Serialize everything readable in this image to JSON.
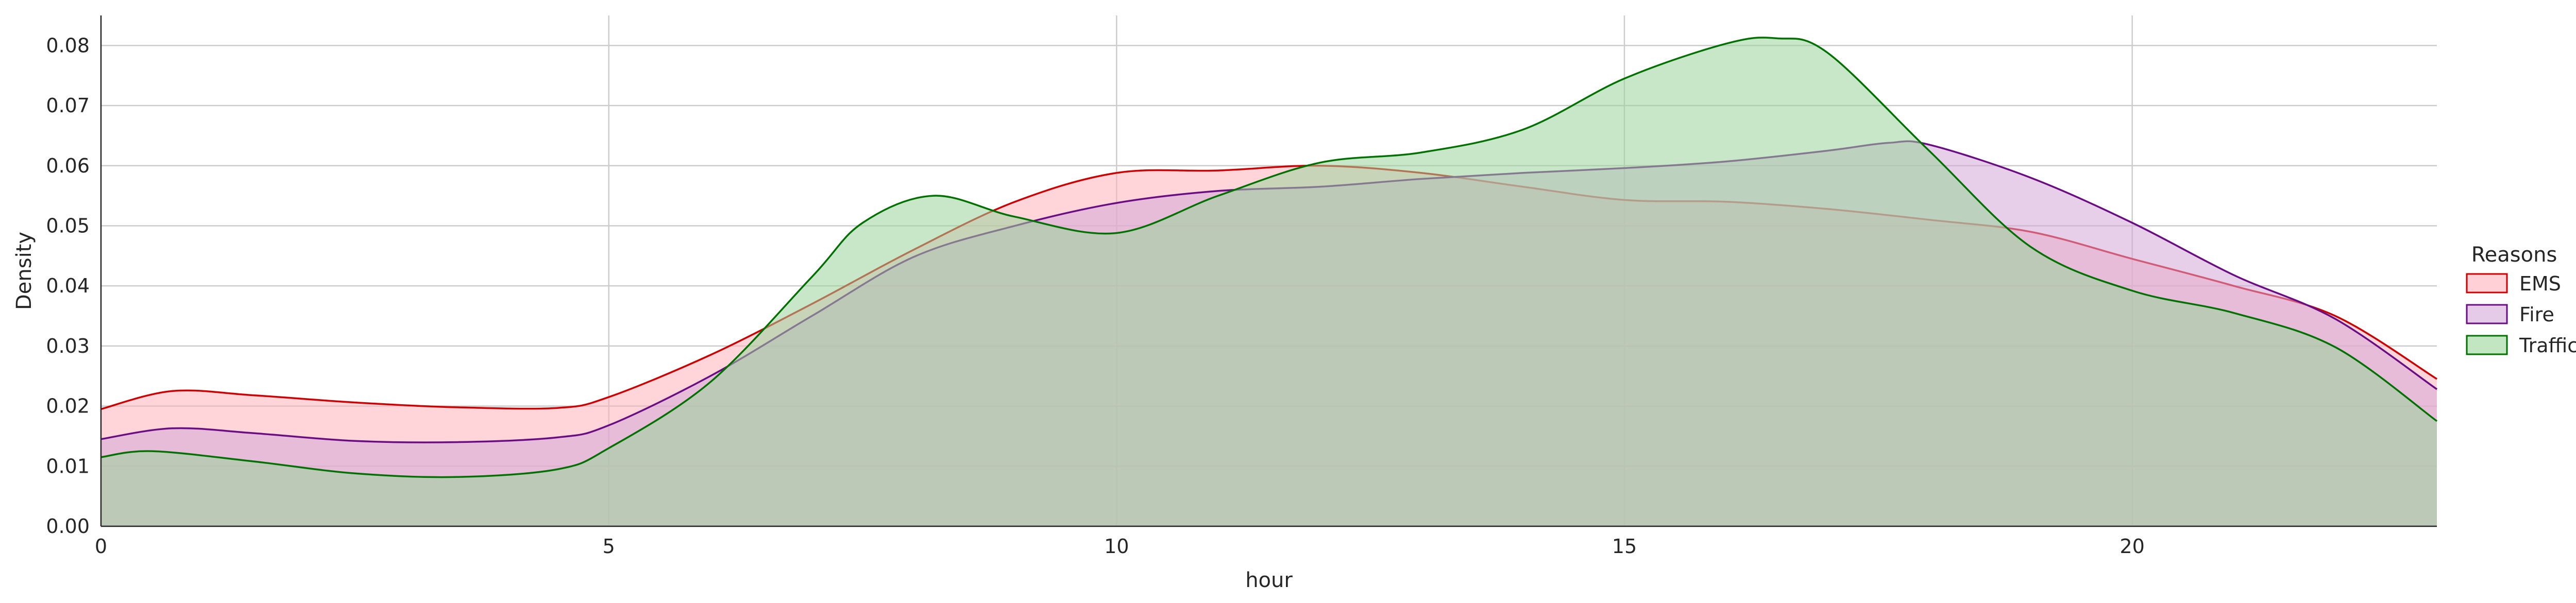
{
  "chart_data": {
    "type": "area",
    "subtype": "kde-density",
    "title": "",
    "xlabel": "hour",
    "ylabel": "Density",
    "xlim": [
      0,
      23
    ],
    "ylim": [
      0,
      0.085
    ],
    "xticks": [
      0,
      5,
      10,
      15,
      20
    ],
    "yticks": [
      0.0,
      0.01,
      0.02,
      0.03,
      0.04,
      0.05,
      0.06,
      0.07,
      0.08
    ],
    "grid": true,
    "legend": {
      "title": "Reasons",
      "placement": "right"
    },
    "series": [
      {
        "name": "EMS",
        "color": "#cc0000",
        "fill": "#ffb3ba",
        "x": [
          0,
          0.7,
          1.5,
          2.5,
          3.5,
          4.5,
          5,
          6,
          7,
          8,
          9,
          10,
          11,
          12,
          13,
          14,
          15,
          16,
          17,
          18,
          19,
          20,
          21,
          22,
          23
        ],
        "y": [
          0.0195,
          0.0225,
          0.0218,
          0.0206,
          0.0198,
          0.0197,
          0.0215,
          0.0285,
          0.037,
          0.046,
          0.054,
          0.0588,
          0.0592,
          0.06,
          0.0588,
          0.0565,
          0.0543,
          0.054,
          0.0528,
          0.051,
          0.049,
          0.0445,
          0.04,
          0.035,
          0.0245
        ]
      },
      {
        "name": "Fire",
        "color": "#6a0d83",
        "fill": "#d4a8d8",
        "x": [
          0,
          0.7,
          1.5,
          2.5,
          3.5,
          4.5,
          5,
          6,
          7,
          8,
          9,
          10,
          11,
          12,
          13,
          14,
          15,
          16,
          17,
          17.6,
          18,
          19,
          20,
          21,
          22,
          23
        ],
        "y": [
          0.0145,
          0.0163,
          0.0155,
          0.0142,
          0.014,
          0.0148,
          0.0168,
          0.025,
          0.035,
          0.0448,
          0.05,
          0.0538,
          0.0558,
          0.0565,
          0.0578,
          0.0588,
          0.0596,
          0.0607,
          0.0625,
          0.0638,
          0.0635,
          0.058,
          0.0505,
          0.0418,
          0.0345,
          0.0228
        ]
      },
      {
        "name": "Traffic",
        "color": "#007000",
        "fill": "#9ad39a",
        "x": [
          0,
          0.5,
          1.5,
          2.5,
          3.5,
          4.5,
          5,
          6,
          7,
          7.5,
          8.2,
          9,
          10,
          11,
          12,
          13,
          14,
          15,
          16,
          16.5,
          17,
          18,
          19,
          20,
          21,
          22,
          23
        ],
        "y": [
          0.0115,
          0.0125,
          0.0108,
          0.0088,
          0.0082,
          0.0095,
          0.013,
          0.024,
          0.0415,
          0.0505,
          0.055,
          0.0515,
          0.0488,
          0.055,
          0.0605,
          0.0622,
          0.066,
          0.0745,
          0.0803,
          0.0812,
          0.0788,
          0.0625,
          0.0465,
          0.0392,
          0.0355,
          0.0298,
          0.0175
        ]
      }
    ]
  }
}
